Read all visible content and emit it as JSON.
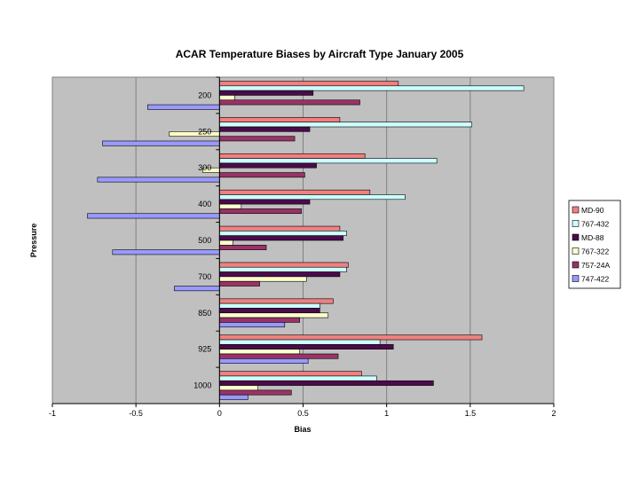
{
  "chart_data": {
    "type": "bar",
    "orientation": "horizontal",
    "title": "ACAR Temperature Biases by Aircraft Type January 2005",
    "xlabel": "Bias",
    "ylabel": "Pressure",
    "xlim": [
      -1,
      2
    ],
    "xticks": [
      "-1",
      "-0.5",
      "0",
      "0.5",
      "1",
      "1.5",
      "2"
    ],
    "grid": "vertical",
    "legend_position": "right",
    "categories": [
      "200",
      "250",
      "300",
      "400",
      "500",
      "700",
      "850",
      "925",
      "1000"
    ],
    "series": [
      {
        "name": "MD-90",
        "color": "#f08080",
        "values": [
          1.07,
          0.72,
          0.87,
          0.9,
          0.72,
          0.77,
          0.68,
          1.57,
          0.85
        ]
      },
      {
        "name": "767-432",
        "color": "#ccffff",
        "values": [
          1.82,
          1.51,
          1.3,
          1.11,
          0.76,
          0.76,
          0.6,
          0.96,
          0.94
        ]
      },
      {
        "name": "MD-88",
        "color": "#4b0a4b",
        "values": [
          0.56,
          0.54,
          0.58,
          0.54,
          0.74,
          0.72,
          0.6,
          1.04,
          1.28
        ]
      },
      {
        "name": "767-322",
        "color": "#ffffcc",
        "values": [
          0.09,
          -0.3,
          -0.1,
          0.13,
          0.08,
          0.52,
          0.65,
          0.48,
          0.23
        ]
      },
      {
        "name": "757-24A",
        "color": "#993366",
        "values": [
          0.84,
          0.45,
          0.51,
          0.49,
          0.28,
          0.24,
          0.48,
          0.71,
          0.43
        ]
      },
      {
        "name": "747-422",
        "color": "#9999ff",
        "values": [
          -0.43,
          -0.7,
          -0.73,
          -0.79,
          -0.64,
          -0.27,
          0.39,
          0.53,
          0.17
        ]
      }
    ],
    "colors": {
      "plot_background": "#c0c0c0",
      "gridline": "#808080",
      "bar_outline": "#000000"
    }
  }
}
